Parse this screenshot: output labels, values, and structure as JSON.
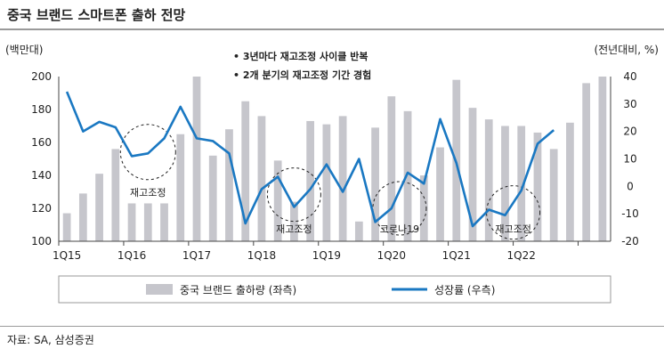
{
  "title": "중국 브랜드 스마트폰 출하 전망",
  "source": "자료: SA, 삼성증권",
  "chart_data": {
    "type": "bar+line",
    "left_axis_unit": "(백만대)",
    "right_axis_unit": "(전년대비, %)",
    "y_left_range": [
      100,
      200
    ],
    "y_left_ticks": [
      "100",
      "120",
      "140",
      "160",
      "180",
      "200"
    ],
    "y_right_range": [
      -20,
      40
    ],
    "y_right_ticks": [
      "-20",
      "-10",
      "0",
      "10",
      "20",
      "30",
      "40"
    ],
    "x_tick_labels": [
      {
        "label": "1Q15",
        "index": 0
      },
      {
        "label": "1Q16",
        "index": 4
      },
      {
        "label": "1Q17",
        "index": 8
      },
      {
        "label": "1Q18",
        "index": 12
      },
      {
        "label": "1Q19",
        "index": 16
      },
      {
        "label": "1Q20",
        "index": 20
      },
      {
        "label": "1Q21",
        "index": 24
      },
      {
        "label": "1Q22",
        "index": 28
      }
    ],
    "bar_values": [
      117,
      129,
      141,
      156,
      123,
      123,
      123,
      165,
      200,
      152,
      168,
      185,
      176,
      149,
      124,
      173,
      171,
      176,
      112,
      169,
      188,
      179,
      140,
      157,
      198,
      181,
      174,
      170,
      170,
      166,
      156,
      172,
      196,
      200
    ],
    "line_values": [
      34.5,
      20,
      23.5,
      21.5,
      11,
      12,
      17.5,
      29,
      17.5,
      16.5,
      12,
      -13.5,
      -1,
      3.5,
      -7.5,
      -1,
      8,
      -2,
      10,
      -13,
      -8,
      5,
      1,
      24.5,
      8.5,
      -14.5,
      -8.5,
      -10.5,
      -1.5,
      15.5,
      20.5
    ],
    "line_start_index": 0,
    "grid": false,
    "bullets": [
      "3년마다 재고조정 사이클 반복",
      "2개 분기의 재고조정 기간 경험"
    ],
    "annotations": [
      {
        "text": "재고조정",
        "index": 5
      },
      {
        "text": "재고조정",
        "index": 14
      },
      {
        "text": "코로나19",
        "index": 20.5
      },
      {
        "text": "재고조정",
        "index": 27.5
      }
    ],
    "legend": {
      "placement": "bottom",
      "bar_label": "중국 브랜드 출하량 (좌측)",
      "line_label": "성장률 (우측)"
    },
    "colors": {
      "bar": "#c6c6cc",
      "line": "#1a78c2",
      "axis": "#444444"
    }
  }
}
